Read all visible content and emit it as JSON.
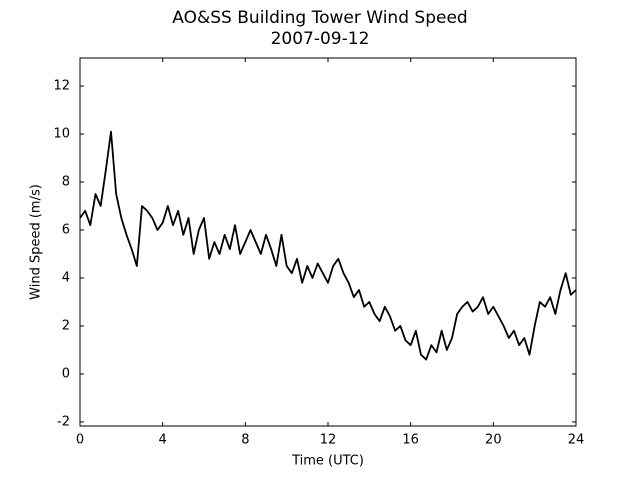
{
  "chart_data": {
    "type": "line",
    "title": "AO&SS Building Tower Wind Speed",
    "subtitle": "2007-09-12",
    "x_label": "Time (UTC)",
    "y_label": "Wind Speed (m/s)",
    "color": "#000000",
    "x": [
      0,
      0.25,
      0.5,
      0.75,
      1,
      1.25,
      1.5,
      1.75,
      2,
      2.25,
      2.5,
      2.75,
      3,
      3.25,
      3.5,
      3.75,
      4,
      4.25,
      4.5,
      4.75,
      5,
      5.25,
      5.5,
      5.75,
      6,
      6.25,
      6.5,
      6.75,
      7,
      7.25,
      7.5,
      7.75,
      8,
      8.25,
      8.5,
      8.75,
      9,
      9.25,
      9.5,
      9.75,
      10,
      10.25,
      10.5,
      10.75,
      11,
      11.25,
      11.5,
      11.75,
      12,
      12.25,
      12.5,
      12.75,
      13,
      13.25,
      13.5,
      13.75,
      14,
      14.25,
      14.5,
      14.75,
      15,
      15.25,
      15.5,
      15.75,
      16,
      16.25,
      16.5,
      16.75,
      17,
      17.25,
      17.5,
      17.75,
      18,
      18.25,
      18.5,
      18.75,
      19,
      19.25,
      19.5,
      19.75,
      20,
      20.25,
      20.5,
      20.75,
      21,
      21.25,
      21.5,
      21.75,
      22,
      22.25,
      22.5,
      22.75,
      23,
      23.25,
      23.5,
      23.75,
      24
    ],
    "values": [
      6.5,
      6.8,
      6.2,
      7.5,
      7.0,
      8.5,
      10.1,
      7.5,
      6.5,
      5.8,
      5.2,
      4.5,
      7.0,
      6.8,
      6.5,
      6.0,
      6.3,
      7.0,
      6.2,
      6.8,
      5.8,
      6.5,
      5.0,
      6.0,
      6.5,
      4.8,
      5.5,
      5.0,
      5.8,
      5.2,
      6.2,
      5.0,
      5.5,
      6.0,
      5.5,
      5.0,
      5.8,
      5.2,
      4.5,
      5.8,
      4.5,
      4.2,
      4.8,
      3.8,
      4.5,
      4.0,
      4.6,
      4.2,
      3.8,
      4.5,
      4.8,
      4.2,
      3.8,
      3.2,
      3.5,
      2.8,
      3.0,
      2.5,
      2.2,
      2.8,
      2.4,
      1.8,
      2.0,
      1.4,
      1.2,
      1.8,
      0.8,
      0.6,
      1.2,
      0.9,
      1.8,
      1.0,
      1.5,
      2.5,
      2.8,
      3.0,
      2.6,
      2.8,
      3.2,
      2.5,
      2.8,
      2.4,
      2.0,
      1.5,
      1.8,
      1.2,
      1.5,
      0.8,
      2.0,
      3.0,
      2.8,
      3.2,
      2.5,
      3.5,
      4.2,
      3.3,
      3.5
    ],
    "xlim": [
      0,
      24
    ],
    "xticks": [
      0,
      4,
      8,
      12,
      16,
      20,
      24
    ],
    "ylim": [
      -2.17,
      13.17
    ],
    "yticks": [
      -2,
      0,
      2,
      4,
      6,
      8,
      10,
      12
    ],
    "grid": false
  }
}
